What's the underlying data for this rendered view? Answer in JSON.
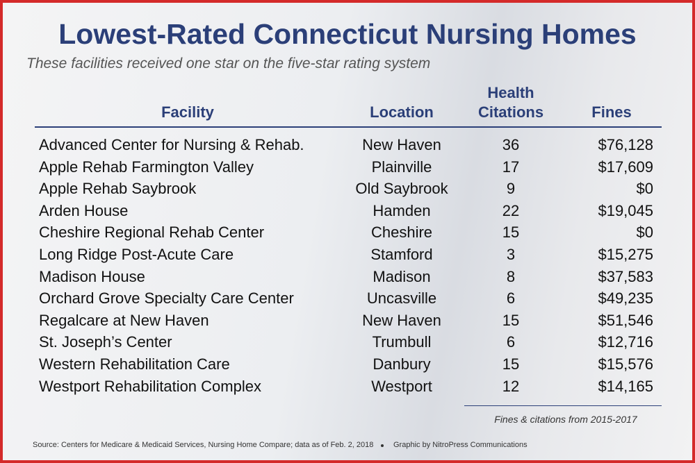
{
  "header": {
    "title": "Lowest-Rated Connecticut Nursing Homes",
    "subtitle": "These facilities received one star on the five-star rating system"
  },
  "table": {
    "columns": [
      "Facility",
      "Location",
      "Health Citations",
      "Fines"
    ],
    "rows": [
      [
        "Advanced Center for Nursing & Rehab.",
        "New Haven",
        "36",
        "$76,128"
      ],
      [
        "Apple Rehab Farmington Valley",
        "Plainville",
        "17",
        "$17,609"
      ],
      [
        "Apple Rehab Saybrook",
        "Old Saybrook",
        "9",
        "$0"
      ],
      [
        "Arden House",
        "Hamden",
        "22",
        "$19,045"
      ],
      [
        "Cheshire Regional Rehab Center",
        "Cheshire",
        "15",
        "$0"
      ],
      [
        "Long Ridge Post-Acute Care",
        "Stamford",
        "3",
        "$15,275"
      ],
      [
        "Madison House",
        "Madison",
        "8",
        "$37,583"
      ],
      [
        "Orchard Grove Specialty Care Center",
        "Uncasville",
        "6",
        "$49,235"
      ],
      [
        "Regalcare at New Haven",
        "New Haven",
        "15",
        "$51,546"
      ],
      [
        "St. Joseph’s Center",
        "Trumbull",
        "6",
        "$12,716"
      ],
      [
        "Western Rehabilitation Care",
        "Danbury",
        "15",
        "$15,576"
      ],
      [
        "Westport Rehabilitation Complex",
        "Westport",
        "12",
        "$14,165"
      ]
    ]
  },
  "footnote": "Fines & citations from 2015-2017",
  "source": "Source: Centers for Medicare & Medicaid Services, Nursing Home Compare; data as of Feb. 2, 2018",
  "credit": "Graphic by NitroPress Communications"
}
